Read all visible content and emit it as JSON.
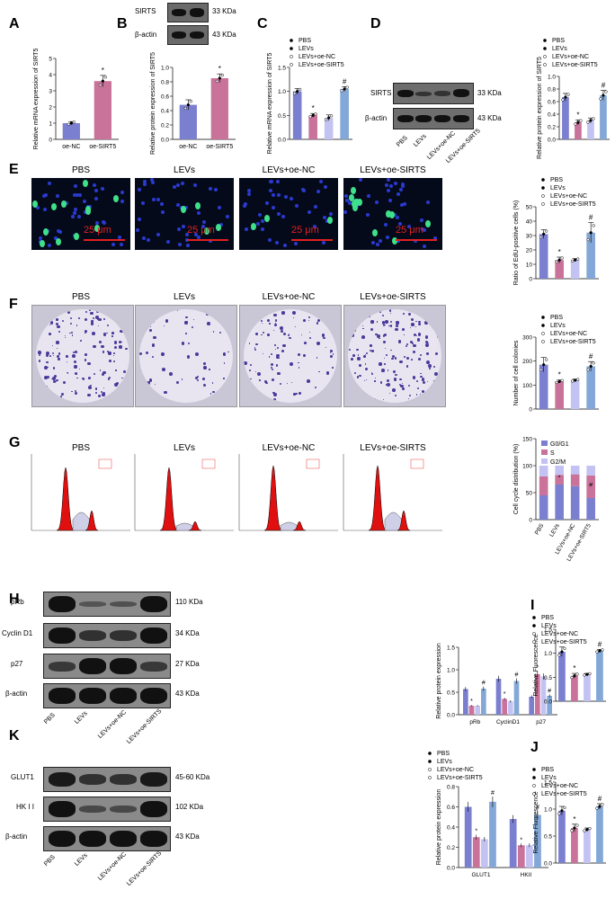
{
  "panels": [
    "A",
    "B",
    "C",
    "D",
    "E",
    "F",
    "G",
    "H",
    "I",
    "J",
    "K"
  ],
  "groups": [
    "PBS",
    "LEVs",
    "LEVs+oe-NC",
    "LEVs+oe-SIRT5"
  ],
  "micro_titles": [
    "PBS",
    "LEVs",
    "LEVs+oe-NC",
    "LEVs+oe-SIRTS"
  ],
  "scale_bar": "25 μm",
  "blots": {
    "b": {
      "rows": [
        {
          "label": "SIRTS",
          "kda": "33 KDa"
        },
        {
          "label": "β-actin",
          "kda": "43 KDa"
        }
      ]
    },
    "d": {
      "rows": [
        {
          "label": "SIRTS",
          "kda": "33 KDa"
        },
        {
          "label": "β-actin",
          "kda": "43 KDa"
        }
      ],
      "lanes": [
        "PBS",
        "LEVs",
        "LEVs+oe-NC",
        "LEVs+oe-SIRT5"
      ]
    },
    "h": {
      "rows": [
        {
          "label": "pRb",
          "kda": "110 KDa"
        },
        {
          "label": "Cyclin D1",
          "kda": "34 KDa"
        },
        {
          "label": "p27",
          "kda": "27 KDa"
        },
        {
          "label": "β-actin",
          "kda": "43 KDa"
        }
      ],
      "lanes": [
        "PBS",
        "LEVs",
        "LEVs+oe-NC",
        "LEVs+oe-SIRTS"
      ]
    },
    "k": {
      "rows": [
        {
          "label": "GLUT1",
          "kda": "45-60 KDa"
        },
        {
          "label": "HK I I",
          "kda": "102 KDa"
        },
        {
          "label": "β-actin",
          "kda": "43 KDa"
        }
      ],
      "lanes": [
        "PBS",
        "LEVs",
        "LEVs+oe-NC",
        "LEVs+oe-SIRTS"
      ]
    }
  },
  "colors": {
    "g1": "#7b7fcf",
    "g2": "#c9729a",
    "g3": "#c3c3f3",
    "g4": "#83a7d6",
    "g0g1": "#7b7fcf",
    "s": "#c9729a",
    "g2m": "#c3c3f3"
  },
  "chart_data": [
    {
      "id": "A",
      "type": "bar",
      "categories": [
        "oe-NC",
        "oe-SIRT5"
      ],
      "values": [
        1.0,
        3.6
      ],
      "errors": [
        0.1,
        0.35
      ],
      "ylabel": "Relative mRNA expression of SIRT5",
      "ylim": [
        0,
        5
      ],
      "yticks": [
        0,
        1,
        2,
        3,
        4,
        5
      ],
      "markers": [
        "",
        "*"
      ],
      "colors": [
        "#7b7fcf",
        "#c9729a"
      ]
    },
    {
      "id": "B",
      "type": "bar",
      "categories": [
        "oe-NC",
        "oe-SIRT5"
      ],
      "values": [
        0.48,
        0.85
      ],
      "errors": [
        0.07,
        0.06
      ],
      "ylabel": "Relative protein expression of SIRT5",
      "ylim": [
        0,
        1.0
      ],
      "yticks": [
        0.0,
        0.2,
        0.4,
        0.6,
        0.8,
        1.0
      ],
      "markers": [
        "",
        "*"
      ],
      "colors": [
        "#7b7fcf",
        "#c9729a"
      ]
    },
    {
      "id": "C",
      "type": "bar",
      "categories": [
        "PBS",
        "LEVs",
        "LEVs+oe-NC",
        "LEVs+oe-SIRT5"
      ],
      "values": [
        1.0,
        0.5,
        0.45,
        1.05
      ],
      "errors": [
        0.06,
        0.04,
        0.06,
        0.05
      ],
      "ylabel": "Relative mRNA expression of SIRT5",
      "ylim": [
        0,
        1.5
      ],
      "yticks": [
        0.0,
        0.5,
        1.0,
        1.5
      ],
      "markers": [
        "",
        "*",
        "",
        "#"
      ],
      "legend": [
        "PBS",
        "LEVs",
        "LEVs+oe-NC",
        "LEVs+oe-SIRT5"
      ]
    },
    {
      "id": "D",
      "type": "bar",
      "categories": [
        "PBS",
        "LEVs",
        "LEVs+oe-NC",
        "LEVs+oe-SIRT5"
      ],
      "values": [
        0.67,
        0.27,
        0.3,
        0.7
      ],
      "errors": [
        0.06,
        0.04,
        0.04,
        0.08
      ],
      "ylabel": "Relative protein expression of SIRT5",
      "ylim": [
        0,
        1.0
      ],
      "yticks": [
        0.0,
        0.2,
        0.4,
        0.6,
        0.8,
        1.0
      ],
      "markers": [
        "",
        "*",
        "",
        "#"
      ],
      "legend": [
        "PBS",
        "LEVs",
        "LEVs+oe-NC",
        "LEVs+oe-SIRT5"
      ]
    },
    {
      "id": "E",
      "type": "bar",
      "categories": [
        "PBS",
        "LEVs",
        "LEVs+oe-NC",
        "LEVs+oe-SIRT5"
      ],
      "values": [
        31,
        13,
        13,
        32
      ],
      "errors": [
        3,
        2,
        1,
        7
      ],
      "ylabel": "Ratio of EdU-positive cells (%)",
      "ylim": [
        0,
        50
      ],
      "yticks": [
        0,
        10,
        20,
        30,
        40,
        50
      ],
      "markers": [
        "",
        "*",
        "",
        "#"
      ],
      "legend": [
        "PBS",
        "LEVs",
        "LEVs+oe-NC",
        "LEVs+oe-SIRT5"
      ]
    },
    {
      "id": "F",
      "type": "bar",
      "categories": [
        "PBS",
        "LEVs",
        "LEVs+oe-NC",
        "LEVs+oe-SIRT5"
      ],
      "values": [
        185,
        115,
        120,
        178
      ],
      "errors": [
        30,
        6,
        5,
        20
      ],
      "ylabel": "Number of cell colonies",
      "ylim": [
        0,
        300
      ],
      "yticks": [
        0,
        100,
        200,
        300
      ],
      "markers": [
        "",
        "*",
        "",
        "#"
      ],
      "legend": [
        "PBS",
        "LEVs",
        "LEVs+oe-NC",
        "LEVs+oe-SIRT5"
      ]
    },
    {
      "id": "G",
      "type": "bar",
      "stacked": true,
      "categories": [
        "PBS",
        "LEVs",
        "LEVs+oe-NC",
        "LEVs+oe-SIRT5"
      ],
      "series": [
        {
          "name": "G0/G1",
          "values": [
            45,
            65,
            62,
            40
          ]
        },
        {
          "name": "S",
          "values": [
            35,
            18,
            22,
            42
          ]
        },
        {
          "name": "G2/M",
          "values": [
            20,
            17,
            16,
            18
          ]
        }
      ],
      "ylabel": "Cell cycle distribution (%)",
      "ylim": [
        0,
        150
      ],
      "yticks": [
        0,
        50,
        100,
        150
      ],
      "markers": [
        "",
        "*",
        "",
        "#"
      ]
    },
    {
      "id": "H",
      "type": "bar",
      "groups": [
        "pRb",
        "CyclinD1",
        "p27"
      ],
      "series": [
        {
          "name": "PBS",
          "values": [
            0.57,
            0.8,
            0.4
          ]
        },
        {
          "name": "LEVs",
          "values": [
            0.2,
            0.35,
            0.9
          ]
        },
        {
          "name": "LEVs+oe-NC",
          "values": [
            0.2,
            0.3,
            0.85
          ]
        },
        {
          "name": "LEVs+oe-SIRT5",
          "values": [
            0.58,
            0.75,
            0.42
          ]
        }
      ],
      "ylabel": "Relative protein expression",
      "ylim": [
        0,
        1.5
      ],
      "yticks": [
        0.0,
        0.5,
        1.0,
        1.5
      ],
      "markers": [
        [
          "",
          "*",
          "",
          "#"
        ],
        [
          "",
          "*",
          "",
          "#"
        ],
        [
          "",
          "*",
          "",
          "#"
        ]
      ]
    },
    {
      "id": "I",
      "type": "bar",
      "categories": [
        "PBS",
        "LEVs",
        "LEVs+oe-NC",
        "LEVs+oe-SIRT5"
      ],
      "values": [
        1.03,
        0.53,
        0.56,
        1.05
      ],
      "errors": [
        0.1,
        0.05,
        0.02,
        0.03
      ],
      "ylabel": "Relative Fluorescence",
      "ylim": [
        0,
        1.5
      ],
      "yticks": [
        0.0,
        0.5,
        1.0,
        1.5
      ],
      "markers": [
        "",
        "*",
        "",
        "#"
      ],
      "legend": [
        "PBS",
        "LEVs",
        "LEVs+oe-NC",
        "LEVs+oe-SIRT5"
      ]
    },
    {
      "id": "K",
      "type": "bar",
      "groups": [
        "GLUT1",
        "HKII"
      ],
      "series": [
        {
          "name": "PBS",
          "values": [
            0.6,
            0.48
          ]
        },
        {
          "name": "LEVs",
          "values": [
            0.3,
            0.22
          ]
        },
        {
          "name": "LEVs+oe-NC",
          "values": [
            0.28,
            0.22
          ]
        },
        {
          "name": "LEVs+oe-SIRT5",
          "values": [
            0.65,
            0.52
          ]
        }
      ],
      "ylabel": "Relative protein expression",
      "ylim": [
        0,
        0.8
      ],
      "yticks": [
        0.0,
        0.2,
        0.4,
        0.6,
        0.8
      ],
      "markers": [
        [
          "",
          "*",
          "",
          "#"
        ],
        [
          "",
          "*",
          "",
          "#"
        ]
      ],
      "legend": [
        "PBS",
        "LEVs",
        "LEVs+oe-NC",
        "LEVs+oe-SIRT5"
      ]
    },
    {
      "id": "J",
      "type": "bar",
      "categories": [
        "PBS",
        "LEVs",
        "LEVs+oe-NC",
        "LEVs+oe-SIRT5"
      ],
      "values": [
        0.97,
        0.65,
        0.62,
        1.05
      ],
      "errors": [
        0.08,
        0.07,
        0.03,
        0.05
      ],
      "ylabel": "Relative Fluorescence",
      "ylim": [
        0,
        1.5
      ],
      "yticks": [
        0.0,
        0.5,
        1.0,
        1.5
      ],
      "markers": [
        "",
        "*",
        "",
        "#"
      ],
      "legend": [
        "PBS",
        "LEVs",
        "LEVs+oe-NC",
        "LEVs+oe-SIRT5"
      ]
    }
  ],
  "flow_titles": [
    "PBS",
    "LEVs",
    "LEVs+oe-NC",
    "LEVs+oe-SIRTS"
  ]
}
